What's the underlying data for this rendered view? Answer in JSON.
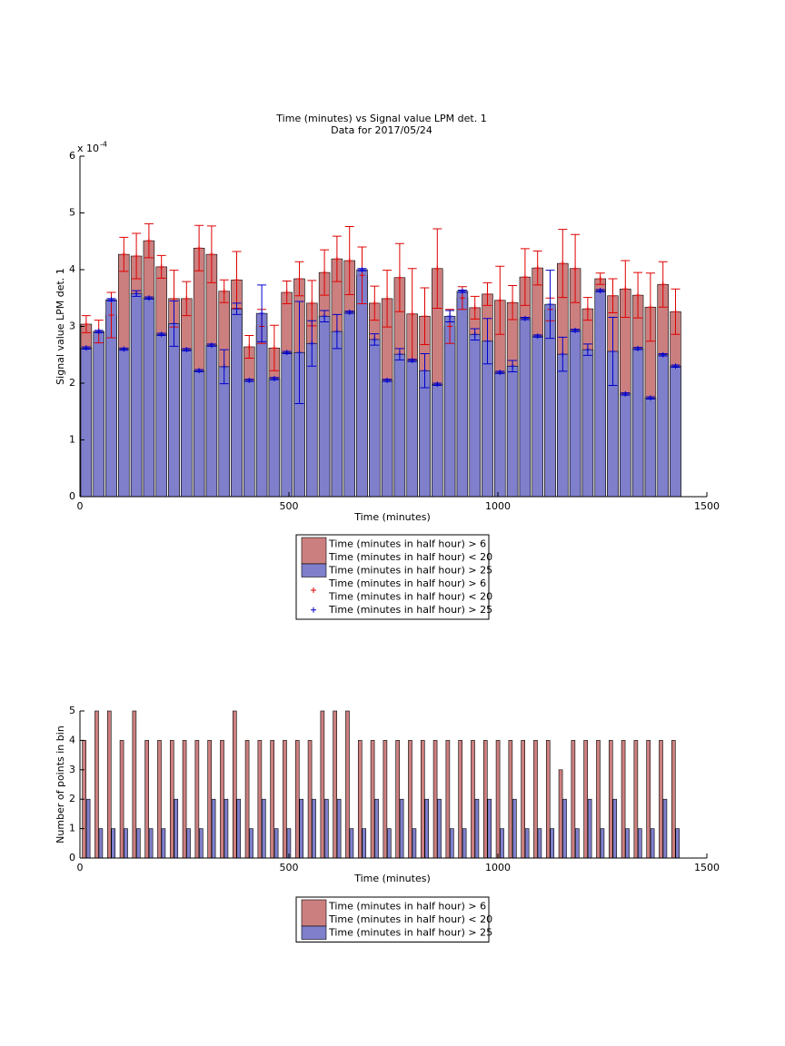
{
  "chart_data": [
    {
      "type": "bar",
      "title": "Time (minutes) vs Signal value LPM det. 1",
      "subtitle": "Data for 2017/05/24",
      "xlabel": "Time (minutes)",
      "ylabel": "Signal value LPM det. 1",
      "y_scale_label": "x 10",
      "y_scale_exponent": "-4",
      "x": [
        15,
        45,
        75,
        105,
        135,
        165,
        195,
        225,
        255,
        285,
        315,
        345,
        375,
        405,
        435,
        465,
        495,
        525,
        555,
        585,
        615,
        645,
        675,
        705,
        735,
        765,
        795,
        825,
        855,
        885,
        915,
        945,
        975,
        1005,
        1035,
        1065,
        1095,
        1125,
        1155,
        1185,
        1215,
        1245,
        1275,
        1305,
        1335,
        1365,
        1395,
        1425
      ],
      "xlim": [
        0,
        1500
      ],
      "xticks": [
        0,
        500,
        1000,
        1500
      ],
      "ylim": [
        0,
        0.0006
      ],
      "yticks": [
        0,
        {
          "value": 0.0001,
          "label": "1"
        },
        {
          "value": 0.0002,
          "label": "2"
        },
        {
          "value": 0.0003,
          "label": "3"
        },
        {
          "value": 0.0004,
          "label": "4"
        },
        {
          "value": 0.0005,
          "label": "5"
        },
        {
          "value": 0.0006,
          "label": "6"
        }
      ],
      "series": [
        {
          "name": "Time (minutes in half hour) > 6\nTime (minutes in half hour) < 20",
          "color": "#cc7f7f",
          "values": [
            0.000304,
            0.000291,
            0.00032,
            0.000427,
            0.000424,
            0.000451,
            0.000405,
            0.000349,
            0.000349,
            0.000438,
            0.000427,
            0.000362,
            0.000382,
            0.000264,
            0.0003,
            0.000262,
            0.00036,
            0.000384,
            0.000341,
            0.000395,
            0.000419,
            0.000416,
            0.00039,
            0.000341,
            0.000349,
            0.000386,
            0.000322,
            0.000318,
            0.000402,
            0.0003,
            0.00035,
            0.000333,
            0.000357,
            0.000346,
            0.000342,
            0.000387,
            0.000403,
            0.00033,
            0.000411,
            0.000402,
            0.000331,
            0.000384,
            0.000354,
            0.000366,
            0.000355,
            0.000334,
            0.000374,
            0.000326
          ],
          "errors": [
            1.5e-05,
            2e-05,
            4e-05,
            3e-05,
            4e-05,
            3e-05,
            2e-05,
            5e-05,
            3e-05,
            4e-05,
            5e-05,
            2e-05,
            5e-05,
            2e-05,
            3e-05,
            4e-05,
            2e-05,
            3e-05,
            4e-05,
            4e-05,
            4e-05,
            6e-05,
            5e-05,
            3e-05,
            5e-05,
            6e-05,
            8e-05,
            5e-05,
            7e-05,
            3e-05,
            2e-05,
            2e-05,
            2e-05,
            6e-05,
            3e-05,
            5e-05,
            3e-05,
            2e-05,
            6e-05,
            6e-05,
            2e-05,
            1e-05,
            3e-05,
            5e-05,
            4e-05,
            6e-05,
            4e-05,
            4e-05
          ],
          "error_name": "Time (minutes in half hour) > 6\nTime (minutes in half hour) < 20",
          "error_color": "#e00000"
        },
        {
          "name": "Time (minutes in half hour) > 25",
          "color": "#7f7fcc",
          "values": [
            0.000262,
            0.000291,
            0.000347,
            0.00026,
            0.000358,
            0.00035,
            0.000286,
            0.000305,
            0.000259,
            0.000222,
            0.000267,
            0.000229,
            0.000331,
            0.000205,
            0.000323,
            0.000208,
            0.000254,
            0.000254,
            0.00027,
            0.000318,
            0.000291,
            0.000325,
            0.0004,
            0.000277,
            0.000205,
            0.000251,
            0.00024,
            0.000222,
            0.000198,
            0.000318,
            0.000362,
            0.000286,
            0.000274,
            0.000219,
            0.00023,
            0.000314,
            0.000283,
            0.000339,
            0.000251,
            0.000293,
            0.000259,
            0.000363,
            0.000256,
            0.000181,
            0.000261,
            0.000174,
            0.00025,
            0.00023
          ],
          "errors": [
            2e-06,
            2e-06,
            2e-06,
            2e-06,
            5e-06,
            2e-06,
            2e-06,
            4e-05,
            2e-06,
            2e-06,
            2e-06,
            3e-05,
            1e-05,
            2e-06,
            5e-05,
            2e-06,
            2e-06,
            9e-05,
            4e-05,
            1e-05,
            3e-05,
            2e-06,
            2e-06,
            1e-05,
            2e-06,
            1e-05,
            2e-06,
            3e-05,
            2e-06,
            1e-05,
            2e-06,
            1e-05,
            4e-05,
            2e-06,
            1e-05,
            2e-06,
            2e-06,
            6e-05,
            3e-05,
            2e-06,
            1e-05,
            2e-06,
            6e-05,
            2e-06,
            2e-06,
            2e-06,
            2e-06,
            2e-06
          ],
          "error_name": "Time (minutes in half hour) > 25",
          "error_color": "#0000cc"
        }
      ]
    },
    {
      "type": "groupedbar",
      "xlabel": "Time (minutes)",
      "ylabel": "Number of points in bin",
      "x": [
        15,
        45,
        75,
        105,
        135,
        165,
        195,
        225,
        255,
        285,
        315,
        345,
        375,
        405,
        435,
        465,
        495,
        525,
        555,
        585,
        615,
        645,
        675,
        705,
        735,
        765,
        795,
        825,
        855,
        885,
        915,
        945,
        975,
        1005,
        1035,
        1065,
        1095,
        1125,
        1155,
        1185,
        1215,
        1245,
        1275,
        1305,
        1335,
        1365,
        1395,
        1425
      ],
      "xlim": [
        0,
        1500
      ],
      "xticks": [
        0,
        500,
        1000,
        1500
      ],
      "ylim": [
        0,
        5
      ],
      "yticks": [
        0,
        1,
        2,
        3,
        4,
        5
      ],
      "series": [
        {
          "name": "Time (minutes in half hour) > 6\nTime (minutes in half hour) < 20",
          "color": "#cc7f7f",
          "values": [
            4,
            5,
            5,
            4,
            5,
            4,
            4,
            4,
            4,
            4,
            4,
            4,
            5,
            4,
            4,
            4,
            4,
            4,
            4,
            5,
            5,
            5,
            4,
            4,
            4,
            4,
            4,
            4,
            4,
            4,
            4,
            4,
            4,
            4,
            4,
            4,
            4,
            4,
            3,
            4,
            4,
            4,
            4,
            4,
            4,
            4,
            4,
            4
          ]
        },
        {
          "name": "Time (minutes in half hour) > 25",
          "color": "#7f7fcc",
          "values": [
            2,
            1,
            1,
            1,
            1,
            1,
            1,
            2,
            1,
            1,
            2,
            2,
            2,
            1,
            2,
            1,
            1,
            2,
            2,
            2,
            2,
            1,
            1,
            2,
            1,
            2,
            1,
            2,
            2,
            1,
            1,
            2,
            2,
            1,
            2,
            1,
            1,
            1,
            2,
            1,
            2,
            1,
            2,
            1,
            1,
            1,
            2,
            1
          ]
        }
      ]
    }
  ]
}
